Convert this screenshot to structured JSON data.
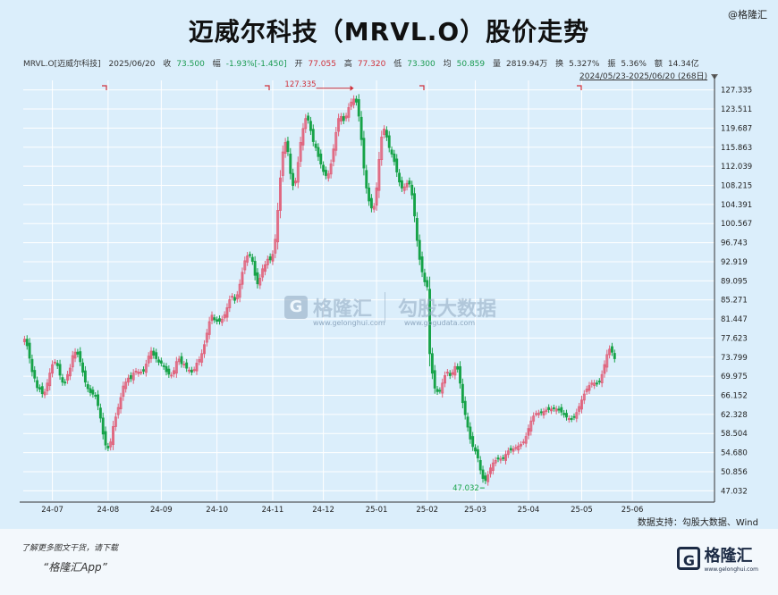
{
  "title": "迈威尔科技（MRVL.O）股价走势",
  "brand": "@格隆汇",
  "infobar": {
    "code": "MRVL.O[迈威尔科技]",
    "date": "2025/06/20",
    "close_label": "收",
    "close": "73.500",
    "change_label": "幅",
    "change": "-1.93%[-1.450]",
    "open_label": "开",
    "open": "77.055",
    "high_label": "高",
    "high": "77.320",
    "low_label": "低",
    "low": "73.300",
    "avg_label": "均",
    "avg": "50.859",
    "vol_label": "量",
    "vol": "2819.94万",
    "turn_label": "换",
    "turn": "5.327%",
    "amp_label": "振",
    "amp": "5.36%",
    "amt_label": "额",
    "amt": "14.34亿"
  },
  "range": "2024/05/23-2025/06/20 (268日)",
  "watermark": {
    "logo": "G",
    "name": "格隆汇",
    "name_sub": "www.gelonghui.com",
    "partner": "勾股大数据",
    "partner_sub": "www.gogudata.com"
  },
  "source": "数据支持：勾股大数据、Wind",
  "footer": {
    "line1": "了解更多图文干货，请下载",
    "line2": "“格隆汇App”",
    "logo": "G",
    "logo_text": "格隆汇",
    "logo_sub": "www.gelonghui.com"
  },
  "colors": {
    "up": "#e0607a",
    "down": "#17a348",
    "grid": "#ffffff",
    "bg": "#dbeefb"
  },
  "chart_data": {
    "type": "candlestick",
    "title": "迈威尔科技（MRVL.O）股价走势",
    "ylim": [
      45.12,
      129.247
    ],
    "y_ticks": [
      "127.335",
      "123.511",
      "119.687",
      "115.863",
      "112.039",
      "108.215",
      "104.391",
      "100.567",
      "96.743",
      "92.919",
      "89.095",
      "85.271",
      "81.447",
      "77.623",
      "73.799",
      "69.975",
      "66.152",
      "62.328",
      "58.504",
      "54.680",
      "50.856",
      "47.032"
    ],
    "x_tick_labels": [
      "24-07",
      "24-08",
      "24-09",
      "24-10",
      "24-11",
      "24-12",
      "25-01",
      "25-02",
      "25-03",
      "25-04",
      "25-05",
      "25-06"
    ],
    "x_tick_index": [
      11,
      33,
      54,
      76,
      98,
      118,
      139,
      159,
      178,
      199,
      220,
      240
    ],
    "n_days": 268,
    "annotations": {
      "max": "127.335",
      "min": "47.032"
    },
    "closes": [
      77.4,
      76.1,
      73.6,
      70.9,
      69.6,
      67.7,
      67.4,
      66.5,
      66.8,
      68.6,
      70.6,
      72.3,
      72.8,
      72.1,
      70.2,
      68.8,
      68.7,
      70.3,
      71.6,
      74.1,
      74.8,
      74.4,
      72.9,
      70.8,
      68.8,
      67.5,
      66.7,
      66.4,
      66.0,
      64.1,
      61.6,
      58.4,
      56.2,
      55.6,
      56.8,
      59.9,
      61.8,
      63.7,
      65.7,
      68.0,
      68.8,
      69.6,
      69.5,
      70.6,
      71.0,
      70.8,
      70.8,
      71.0,
      72.4,
      74.0,
      75.0,
      74.2,
      73.5,
      72.8,
      72.6,
      71.9,
      70.9,
      70.4,
      70.2,
      71.1,
      72.9,
      73.4,
      72.5,
      72.4,
      71.6,
      71.2,
      70.8,
      71.3,
      72.6,
      73.3,
      74.5,
      76.3,
      78.6,
      80.9,
      82.2,
      81.3,
      81.0,
      81.0,
      81.4,
      82.3,
      83.7,
      85.3,
      86.0,
      85.2,
      86.3,
      88.4,
      90.8,
      93.1,
      94.1,
      94.3,
      93.0,
      90.2,
      88.5,
      89.6,
      91.5,
      92.3,
      93.4,
      93.3,
      94.4,
      97.4,
      103.2,
      109.7,
      114.9,
      116.8,
      115.0,
      110.6,
      108.2,
      109.1,
      112.8,
      116.8,
      119.6,
      121.6,
      121.3,
      119.2,
      117.0,
      115.8,
      114.0,
      112.5,
      111.0,
      110.2,
      110.5,
      112.5,
      115.5,
      118.8,
      121.6,
      122.0,
      121.2,
      122.1,
      123.8,
      124.9,
      125.5,
      124.9,
      122.1,
      117.4,
      111.7,
      107.7,
      105.1,
      103.7,
      104.0,
      107.7,
      113.4,
      117.9,
      119.5,
      117.9,
      115.8,
      114.5,
      113.0,
      110.9,
      108.9,
      107.7,
      107.9,
      108.6,
      108.5,
      106.3,
      102.1,
      97.2,
      93.4,
      90.9,
      88.9,
      87.9,
      74.5,
      70.6,
      67.6,
      66.9,
      67.1,
      68.6,
      70.1,
      70.8,
      70.1,
      70.7,
      71.9,
      71.4,
      68.6,
      64.7,
      62.3,
      59.8,
      57.4,
      55.9,
      55.0,
      53.6,
      51.2,
      49.5,
      49.1,
      50.2,
      51.6,
      52.6,
      53.1,
      53.4,
      53.4,
      53.6,
      54.3,
      55.0,
      55.2,
      55.4,
      55.7,
      56.0,
      56.3,
      56.8,
      57.9,
      59.5,
      61.0,
      62.0,
      62.5,
      62.6,
      62.7,
      62.9,
      63.2,
      63.3,
      63.4,
      63.5,
      63.4,
      63.2,
      62.8,
      62.3,
      61.8,
      61.5,
      61.4,
      61.8,
      62.7,
      63.9,
      65.2,
      66.4,
      67.4,
      68.1,
      68.6,
      68.6,
      68.5,
      68.9,
      70.3,
      72.3,
      74.3,
      75.4,
      74.8,
      73.5
    ]
  }
}
